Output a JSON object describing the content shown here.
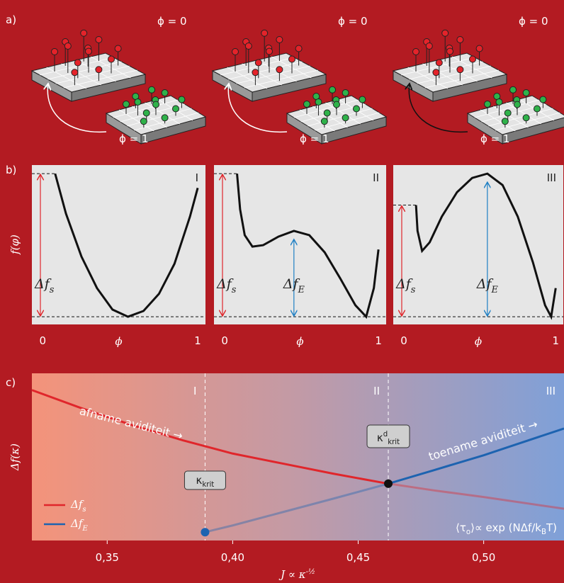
{
  "panel_labels": [
    "a)",
    "b)",
    "c)"
  ],
  "illustration": {
    "phi_labels": [
      [
        "ϕ = 0",
        "ϕ = 1"
      ],
      [
        "ϕ = 0",
        "ϕ = 1"
      ],
      [
        "ϕ = 0",
        "ϕ = 1"
      ]
    ]
  },
  "chart_data": [
    {
      "type": "line",
      "label": "I",
      "ylabel": "f(φ)",
      "xlabel": "ϕ",
      "annotations": [
        "Δf_s"
      ],
      "x": [
        0.08,
        0.15,
        0.25,
        0.35,
        0.45,
        0.55,
        0.65,
        0.75,
        0.85,
        0.95,
        1.0
      ],
      "series": [
        {
          "color": "#111111",
          "values": [
            1.0,
            0.72,
            0.42,
            0.2,
            0.05,
            0,
            0.04,
            0.16,
            0.37,
            0.7,
            0.9
          ]
        }
      ],
      "xlim": [
        -0.07,
        1.05
      ],
      "ylim": [
        -0.054,
        1.06
      ],
      "xticks": [
        0,
        1
      ]
    },
    {
      "type": "line",
      "label": "II",
      "xlabel": "ϕ",
      "annotations": [
        "Δf_s",
        "Δf_E"
      ],
      "x": [
        0.08,
        0.1,
        0.13,
        0.18,
        0.25,
        0.35,
        0.45,
        0.55,
        0.65,
        0.75,
        0.85,
        0.92,
        0.97,
        1.0
      ],
      "series": [
        {
          "color": "#111111",
          "values": [
            1.0,
            0.75,
            0.57,
            0.49,
            0.5,
            0.56,
            0.6,
            0.57,
            0.45,
            0.27,
            0.08,
            0,
            0.2,
            0.47
          ]
        }
      ],
      "xlim": [
        -0.07,
        1.05
      ],
      "ylim": [
        -0.054,
        1.06
      ],
      "xticks": [
        0,
        1
      ]
    },
    {
      "type": "line",
      "label": "III",
      "xlabel": "ϕ",
      "annotations": [
        "Δf_s",
        "Δf_E"
      ],
      "x": [
        0.08,
        0.09,
        0.12,
        0.17,
        0.25,
        0.35,
        0.45,
        0.55,
        0.65,
        0.75,
        0.85,
        0.93,
        0.97,
        1.0
      ],
      "series": [
        {
          "color": "#111111",
          "values": [
            0.78,
            0.6,
            0.46,
            0.52,
            0.7,
            0.87,
            0.97,
            1.0,
            0.92,
            0.7,
            0.38,
            0.08,
            0,
            0.2
          ]
        }
      ],
      "xlim": [
        -0.07,
        1.05
      ],
      "ylim": [
        -0.054,
        1.06
      ],
      "xticks": [
        0,
        1
      ]
    },
    {
      "type": "line",
      "xlabel": "J ∝ κ^{-½}",
      "ylabel": "Δf(κ)",
      "regions": [
        "I",
        "II",
        "III"
      ],
      "annotations": [
        "afname aviditeit →",
        "toename aviditeit →",
        "⟨τ_o⟩∝ exp (NΔf/k_BT)"
      ],
      "vlines": [
        {
          "value": 0.389,
          "label": "κ_{krit}"
        },
        {
          "value": 0.462,
          "label": "κ^{d}_{krit}"
        }
      ],
      "series": [
        {
          "name": "Δf_s",
          "color": "#e0262b",
          "x": [
            0.32,
            0.34,
            0.36,
            0.38,
            0.4,
            0.42,
            0.44,
            0.46,
            0.48,
            0.5,
            0.532
          ],
          "values": [
            0.9,
            0.79,
            0.69,
            0.6,
            0.52,
            0.46,
            0.4,
            0.345,
            0.3,
            0.26,
            0.19
          ]
        },
        {
          "name": "Δf_E",
          "color": "#1d63b0",
          "x": [
            0.389,
            0.4,
            0.42,
            0.44,
            0.462,
            0.48,
            0.5,
            0.532
          ],
          "values": [
            0.05,
            0.09,
            0.17,
            0.25,
            0.34,
            0.42,
            0.51,
            0.67
          ]
        }
      ],
      "xlim": [
        0.32,
        0.532
      ],
      "ylim": [
        0,
        1
      ],
      "xticks": [
        {
          "value": 0.35,
          "label": "0,35"
        },
        {
          "value": 0.4,
          "label": "0,40"
        },
        {
          "value": 0.45,
          "label": "0,45"
        },
        {
          "value": 0.5,
          "label": "0,50"
        }
      ]
    }
  ]
}
